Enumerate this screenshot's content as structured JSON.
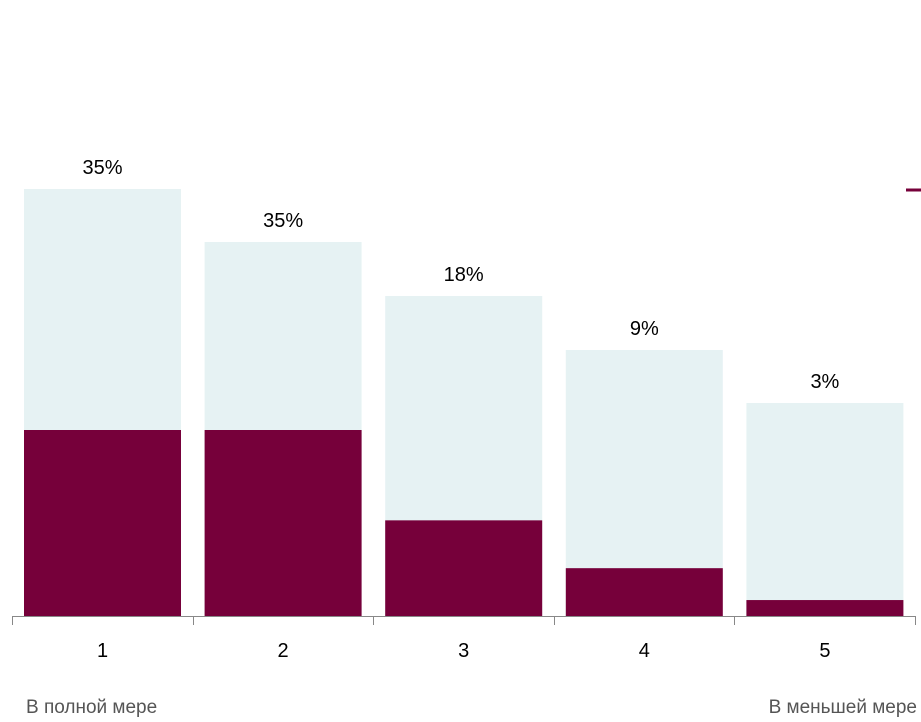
{
  "chart_data": {
    "type": "bar",
    "categories": [
      "1",
      "2",
      "3",
      "4",
      "5"
    ],
    "series": [
      {
        "values": [
          35,
          35,
          18,
          9,
          3
        ]
      }
    ],
    "data_labels": [
      "35%",
      "35%",
      "18%",
      "9%",
      "3%"
    ],
    "ylim": [
      0,
      100
    ],
    "grid": false,
    "colors": {
      "bar_fill": "#76003A",
      "bar_background": "#E6F2F3",
      "axis": "#888888"
    }
  },
  "scale_labels": {
    "left": "В полной мере",
    "right": "В меньшей мере"
  }
}
